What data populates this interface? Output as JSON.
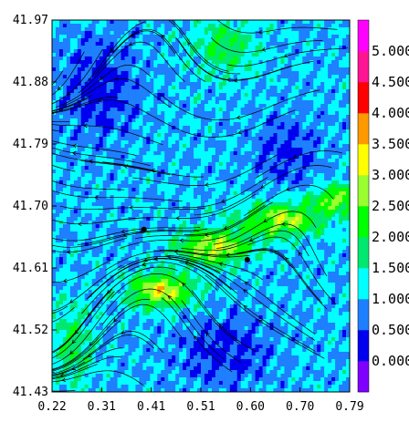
{
  "chart_data": {
    "type": "heatmap",
    "title": "",
    "xlabel": "",
    "ylabel": "",
    "xlim": [
      0.22,
      0.79
    ],
    "ylim": [
      41.43,
      41.97
    ],
    "x_ticks": [
      "0.22",
      "0.31",
      "0.41",
      "0.51",
      "0.60",
      "0.70",
      "0.79"
    ],
    "y_ticks": [
      "41.97",
      "41.88",
      "41.79",
      "41.70",
      "41.61",
      "41.52",
      "41.43"
    ],
    "overlay": "streamlines",
    "grid": false,
    "markers": [
      {
        "x": 0.396,
        "y": 41.666
      },
      {
        "x": 0.594,
        "y": 41.622
      }
    ],
    "colorbar": {
      "position": "right",
      "ticks": [
        "0.000",
        "0.500",
        "1.000",
        "1.500",
        "2.000",
        "2.500",
        "3.000",
        "3.500",
        "4.000",
        "4.500",
        "5.000"
      ],
      "colors": [
        "#7f00ff",
        "#0000ee",
        "#1e7fff",
        "#00ffff",
        "#00e870",
        "#00ff00",
        "#9aff30",
        "#ffff00",
        "#ff9900",
        "#ff0000",
        "#ff1493",
        "#ff00ff"
      ]
    },
    "field": {
      "base_level": 1.0,
      "ridges": [
        {
          "x": 0.43,
          "y": 41.577,
          "sx": 0.06,
          "sy": 0.025,
          "amp": 2.2
        },
        {
          "x": 0.53,
          "y": 41.64,
          "sx": 0.07,
          "sy": 0.025,
          "amp": 2.0
        },
        {
          "x": 0.66,
          "y": 41.68,
          "sx": 0.08,
          "sy": 0.025,
          "amp": 1.8
        },
        {
          "x": 0.77,
          "y": 41.71,
          "sx": 0.05,
          "sy": 0.02,
          "amp": 1.7
        },
        {
          "x": 0.55,
          "y": 41.93,
          "sx": 0.06,
          "sy": 0.04,
          "amp": 1.0
        },
        {
          "x": 0.26,
          "y": 41.5,
          "sx": 0.04,
          "sy": 0.06,
          "amp": 0.9
        }
      ],
      "lows": [
        {
          "x": 0.31,
          "y": 41.87,
          "sx": 0.07,
          "sy": 0.07,
          "amp": 0.8
        },
        {
          "x": 0.67,
          "y": 41.78,
          "sx": 0.06,
          "sy": 0.05,
          "amp": 0.7
        },
        {
          "x": 0.55,
          "y": 41.49,
          "sx": 0.09,
          "sy": 0.05,
          "amp": 0.7
        }
      ]
    }
  }
}
